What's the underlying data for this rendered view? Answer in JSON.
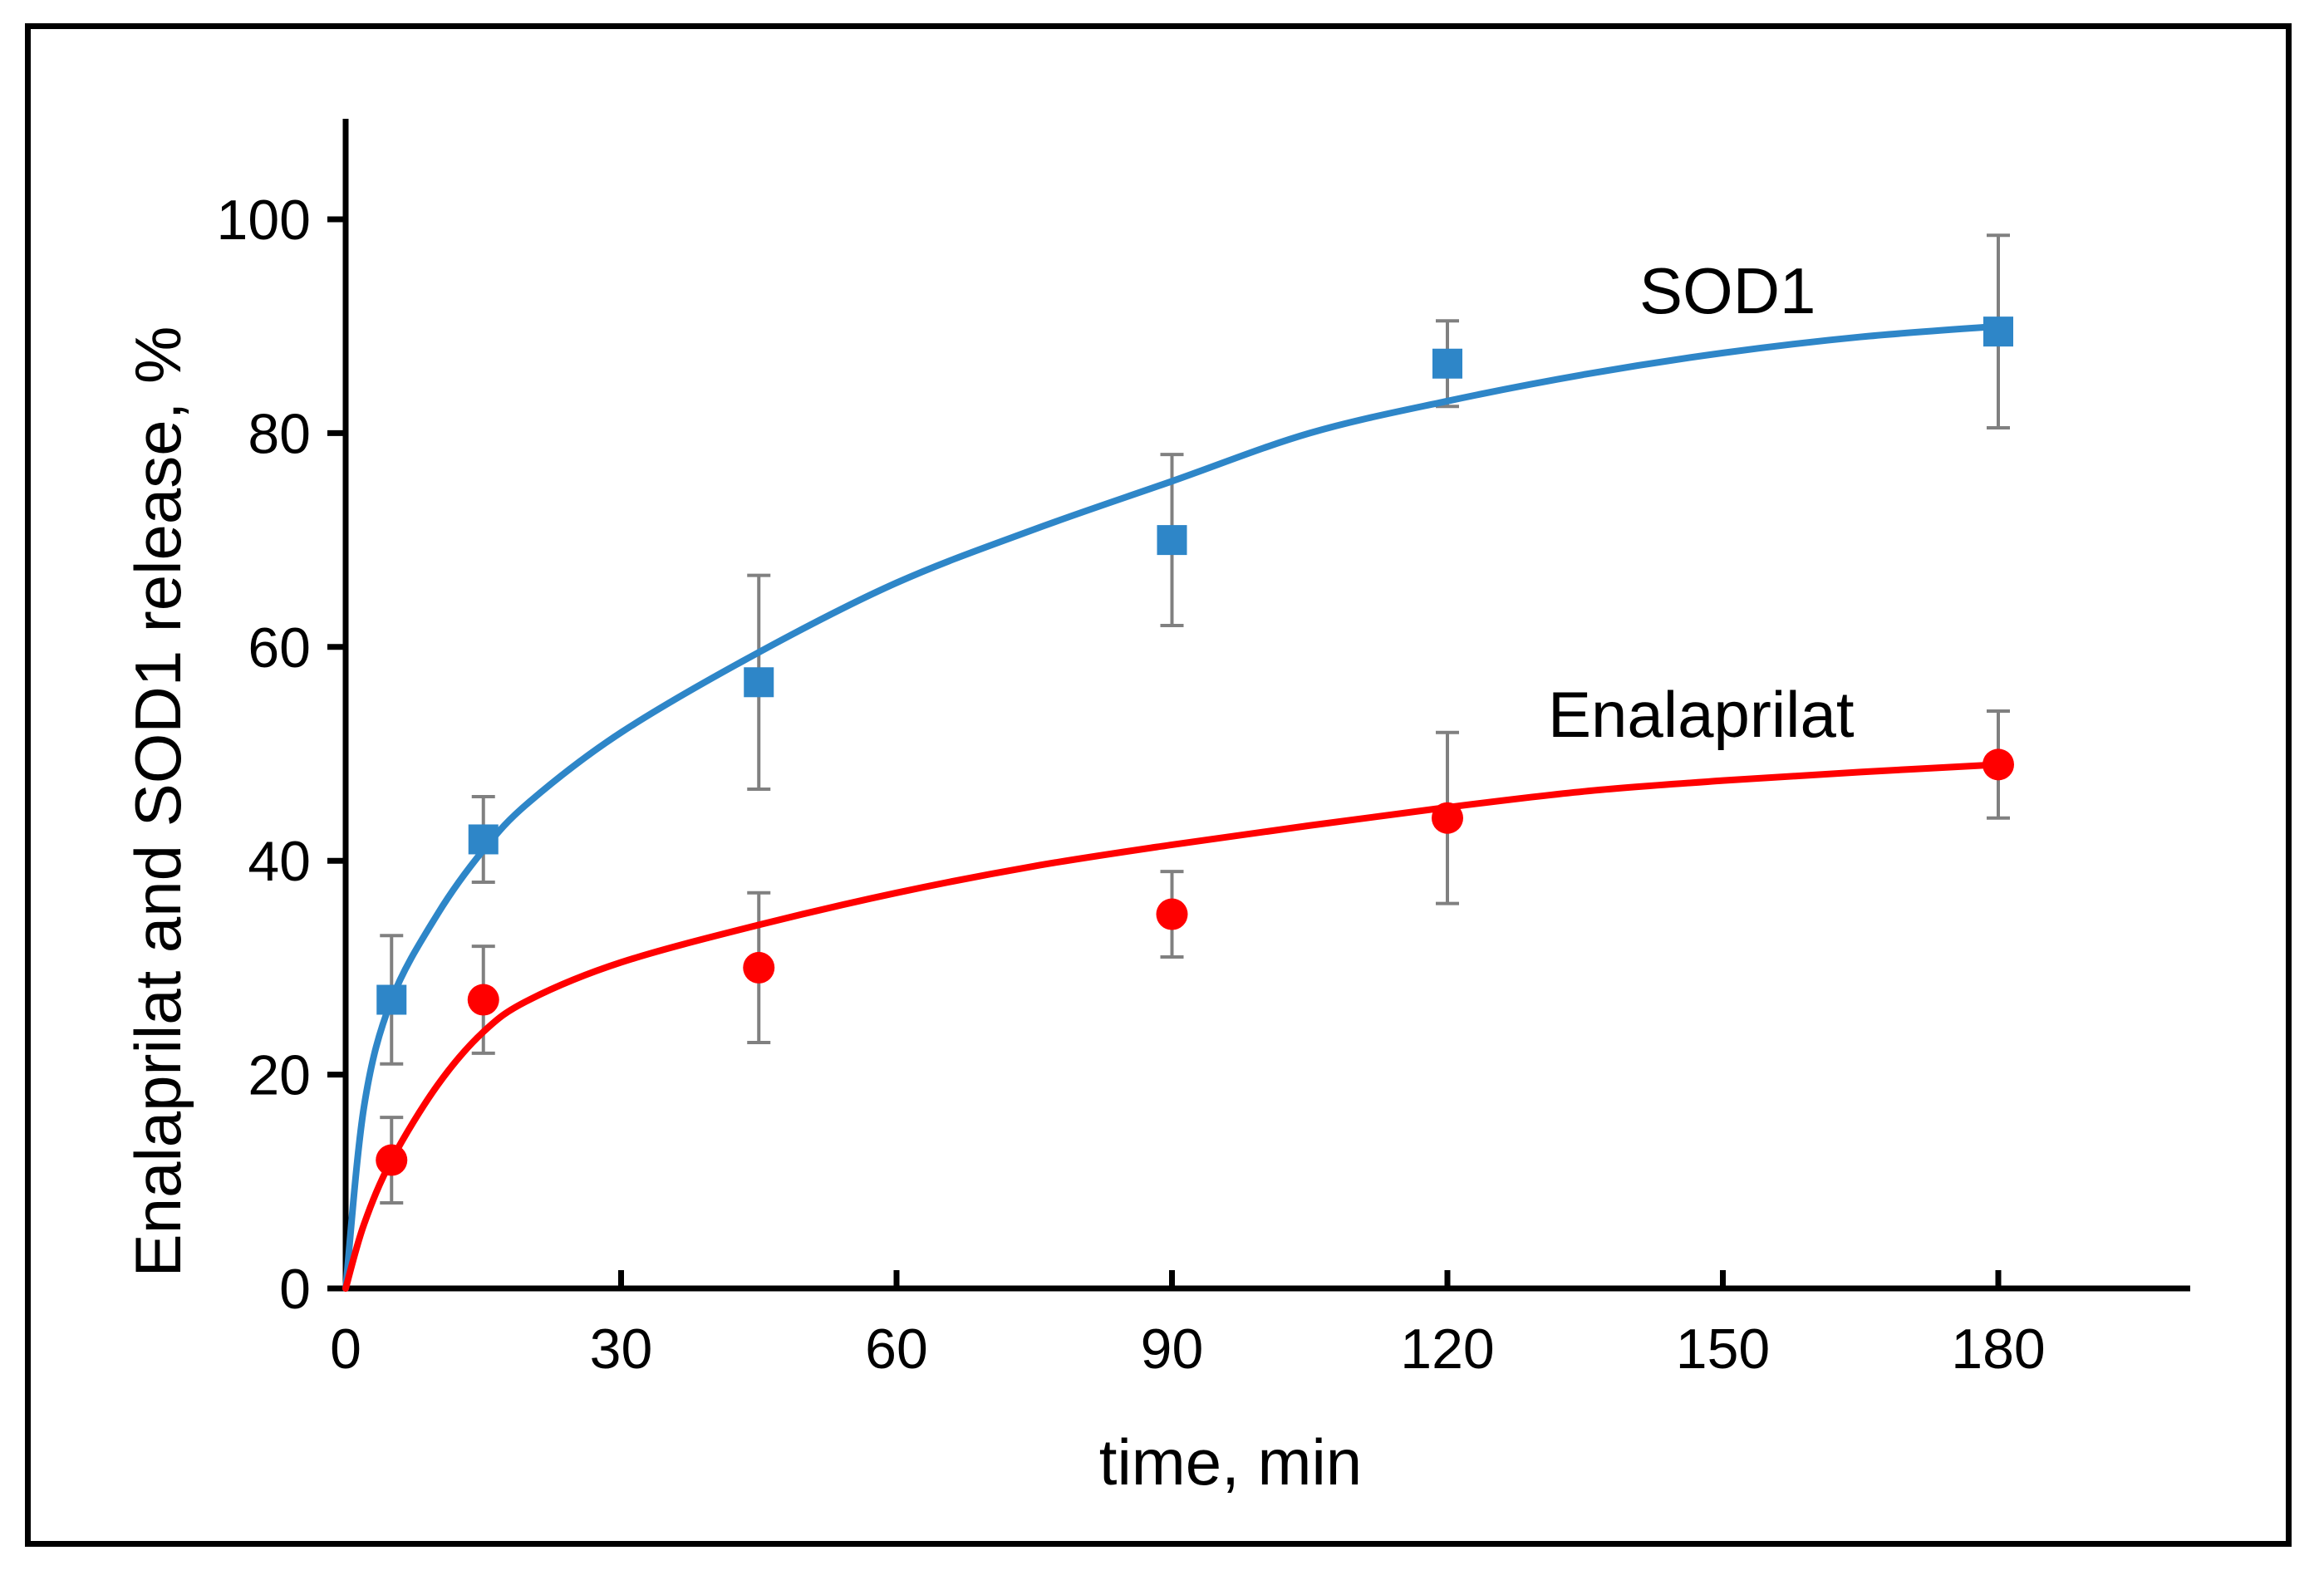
{
  "chart_data": {
    "type": "scatter",
    "title": "",
    "xlabel": "time, min",
    "ylabel": "Enalaprilat and SOD1 release, %",
    "xlim": [
      0,
      200
    ],
    "ylim": [
      0,
      110
    ],
    "xticks": [
      0,
      30,
      60,
      90,
      120,
      150,
      180
    ],
    "yticks": [
      0,
      20,
      40,
      60,
      80,
      100
    ],
    "grid": false,
    "legend": "inline labels",
    "series": [
      {
        "name": "SOD1",
        "label": "SOD1",
        "color": "#2E86C8",
        "marker": "square",
        "x": [
          5,
          15,
          45,
          90,
          120,
          180
        ],
        "y": [
          27,
          42,
          56.7,
          70,
          86.5,
          89.5
        ],
        "error": [
          6,
          4,
          10,
          8,
          4,
          9
        ],
        "fit": {
          "x": [
            0,
            2,
            5,
            10,
            15,
            20,
            30,
            45,
            60,
            75,
            90,
            105,
            120,
            135,
            150,
            165,
            180
          ],
          "y": [
            0,
            17,
            27,
            35,
            41,
            45.5,
            52,
            59.5,
            66,
            71,
            75.5,
            80,
            83,
            85.5,
            87.5,
            89,
            90
          ]
        }
      },
      {
        "name": "Enalaprilat",
        "label": "Enalaprilat",
        "color": "#FF0000",
        "marker": "circle",
        "x": [
          5,
          15,
          45,
          90,
          120,
          180
        ],
        "y": [
          12,
          27,
          30,
          35,
          44,
          49
        ],
        "error": [
          4,
          5,
          7,
          4,
          8,
          5
        ],
        "fit": {
          "x": [
            0,
            2,
            5,
            10,
            15,
            20,
            30,
            45,
            60,
            75,
            90,
            105,
            120,
            135,
            150,
            165,
            180
          ],
          "y": [
            0,
            6,
            12,
            19,
            24,
            27,
            30.5,
            34,
            37,
            39.5,
            41.5,
            43.3,
            45,
            46.5,
            47.5,
            48.3,
            49
          ]
        }
      }
    ],
    "error_bar_color": "#808080"
  }
}
